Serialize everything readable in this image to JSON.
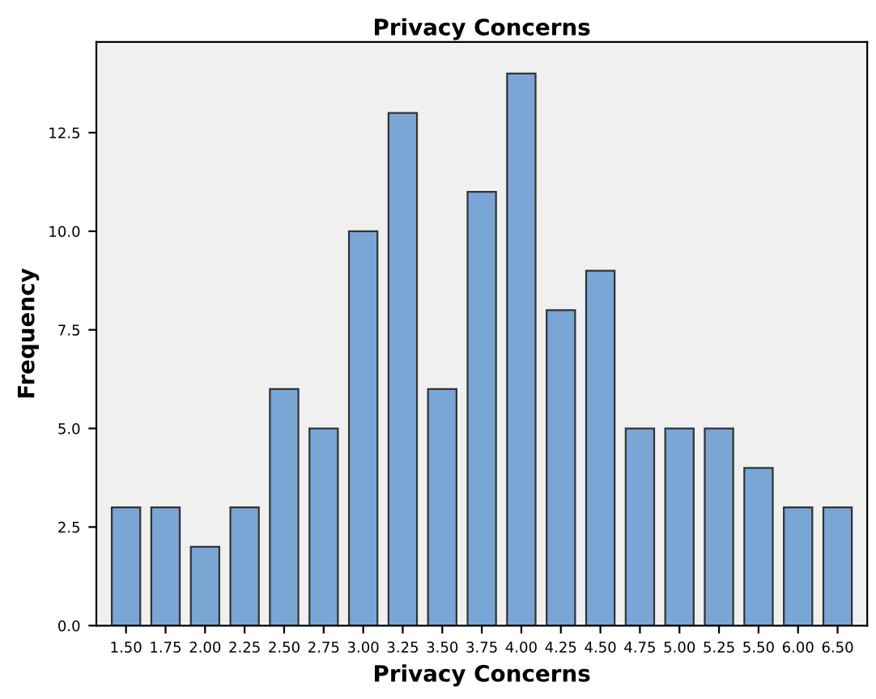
{
  "chart_data": {
    "type": "bar",
    "title": "Privacy Concerns",
    "xlabel": "Privacy Concerns",
    "ylabel": "Frequency",
    "categories": [
      "1.50",
      "1.75",
      "2.00",
      "2.25",
      "2.50",
      "2.75",
      "3.00",
      "3.25",
      "3.50",
      "3.75",
      "4.00",
      "4.25",
      "4.50",
      "4.75",
      "5.00",
      "5.25",
      "5.50",
      "6.00",
      "6.50"
    ],
    "values": [
      3,
      3,
      2,
      3,
      6,
      5,
      10,
      13,
      6,
      11,
      14,
      8,
      9,
      5,
      5,
      5,
      4,
      3,
      3
    ],
    "color": "#7aa6d6",
    "ylim": [
      0,
      14.8
    ],
    "yticks": [
      {
        "value": 0,
        "label": "0.0"
      },
      {
        "value": 2.5,
        "label": "2.5"
      },
      {
        "value": 5,
        "label": "5.0"
      },
      {
        "value": 7.5,
        "label": "7.5"
      },
      {
        "value": 10,
        "label": "10.0"
      },
      {
        "value": 12.5,
        "label": "12.5"
      }
    ],
    "grid": false,
    "legend": false
  }
}
